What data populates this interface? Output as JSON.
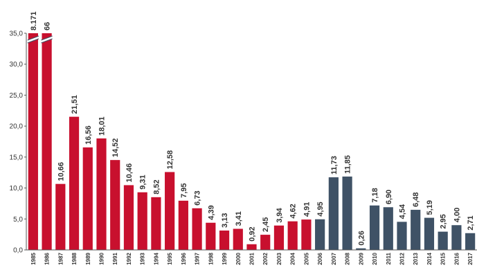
{
  "chart_data": {
    "type": "bar",
    "categories": [
      "1985",
      "1986",
      "1987",
      "1988",
      "1989",
      "1990",
      "1991",
      "1992",
      "1993",
      "1994",
      "1995",
      "1996",
      "1997",
      "1998",
      "1999",
      "2000",
      "2001",
      "2002",
      "2003",
      "2004",
      "2005",
      "2006",
      "2007",
      "2008",
      "2009",
      "2010",
      "2011",
      "2012",
      "2013",
      "2014",
      "2015",
      "2016",
      "2017"
    ],
    "values": [
      8171,
      66,
      10.66,
      21.51,
      16.56,
      18.01,
      14.52,
      10.46,
      9.31,
      8.52,
      12.58,
      7.95,
      6.73,
      4.39,
      3.13,
      3.41,
      0.92,
      2.45,
      3.94,
      4.62,
      4.91,
      4.95,
      11.73,
      11.85,
      0.26,
      7.18,
      6.9,
      4.54,
      6.48,
      5.19,
      2.95,
      4.0,
      2.71
    ],
    "data_labels": [
      "8.171",
      "66",
      "10,66",
      "21,51",
      "16,56",
      "18,01",
      "14,52",
      "10,46",
      "9,31",
      "8,52",
      "12,58",
      "7,95",
      "6,73",
      "4,39",
      "3,13",
      "3,41",
      "0,92",
      "2,45",
      "3,94",
      "4,62",
      "4,91",
      "4,95",
      "11,73",
      "11,85",
      "0,26",
      "7,18",
      "6,90",
      "4,54",
      "6,48",
      "5,19",
      "2,95",
      "4,00",
      "2,71"
    ],
    "series_color": [
      "#c8102e",
      "#c8102e",
      "#c8102e",
      "#c8102e",
      "#c8102e",
      "#c8102e",
      "#c8102e",
      "#c8102e",
      "#c8102e",
      "#c8102e",
      "#c8102e",
      "#c8102e",
      "#c8102e",
      "#c8102e",
      "#c8102e",
      "#c8102e",
      "#c8102e",
      "#c8102e",
      "#c8102e",
      "#c8102e",
      "#c8102e",
      "#3f5266",
      "#3f5266",
      "#3f5266",
      "#3f5266",
      "#3f5266",
      "#3f5266",
      "#3f5266",
      "#3f5266",
      "#3f5266",
      "#3f5266",
      "#3f5266",
      "#3f5266"
    ],
    "axis_break_categories": [
      "1985",
      "1986"
    ],
    "ylim": [
      0,
      35
    ],
    "yticks": [
      "0,0",
      "5,0",
      "10,0",
      "15,0",
      "20,0",
      "25,0",
      "30,0",
      "35,0"
    ],
    "ytick_values": [
      0,
      5,
      10,
      15,
      20,
      25,
      30,
      35
    ],
    "grid": false,
    "title": "",
    "xlabel": "",
    "ylabel": ""
  },
  "colors": {
    "axis": "#555555",
    "text": "#333333",
    "break_mark": "#3f5266"
  }
}
